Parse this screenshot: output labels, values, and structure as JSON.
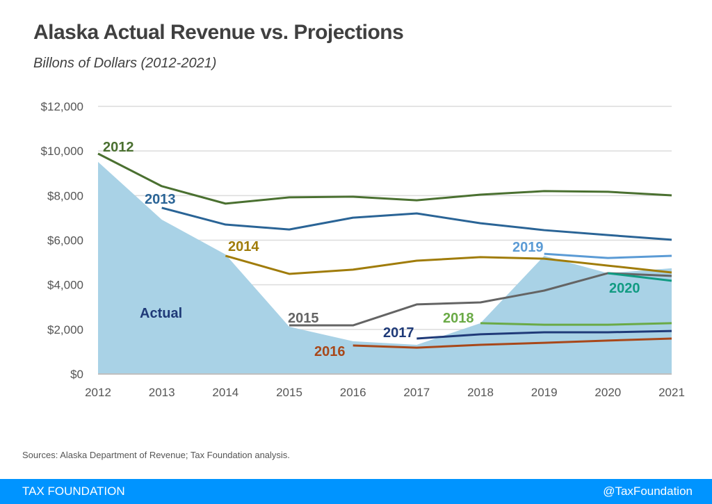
{
  "header": {
    "title": "Alaska Actual Revenue vs. Projections",
    "subtitle": "Billons of Dollars (2012-2021)"
  },
  "footer": {
    "source": "Sources: Alaska Department of Revenue; Tax Foundation analysis.",
    "brand": "TAX FOUNDATION",
    "handle": "@TaxFoundation"
  },
  "chart_data": {
    "type": "line",
    "title": "Alaska Actual Revenue vs. Projections",
    "subtitle": "Billons of Dollars (2012-2021)",
    "xlabel": "",
    "ylabel": "",
    "x": [
      2012,
      2013,
      2014,
      2015,
      2016,
      2017,
      2018,
      2019,
      2020,
      2021
    ],
    "x_tick_labels": [
      "2012",
      "2013",
      "2014",
      "2015",
      "2016",
      "2017",
      "2018",
      "2019",
      "2020",
      "2021"
    ],
    "y_ticks": [
      0,
      2000,
      4000,
      6000,
      8000,
      10000,
      12000
    ],
    "y_tick_labels": [
      "$0",
      "$2,000",
      "$4,000",
      "$6,000",
      "$8,000",
      "$10,000",
      "$12,000"
    ],
    "ylim": [
      0,
      12000
    ],
    "grid": true,
    "actual": {
      "name": "Actual",
      "type": "area",
      "color": "#a9d2e6",
      "label_color": "#1f3a78",
      "values": [
        9510,
        6920,
        5360,
        2120,
        1470,
        1310,
        2280,
        5300,
        4520,
        4740
      ]
    },
    "series": [
      {
        "name": "2012",
        "color": "#4a7030",
        "start": 2012,
        "values": [
          9880,
          8420,
          7640,
          7920,
          7950,
          7790,
          8040,
          8200,
          8170,
          8010
        ]
      },
      {
        "name": "2013",
        "color": "#2a6496",
        "start": 2013,
        "values": [
          7450,
          6700,
          6480,
          7010,
          7200,
          6760,
          6450,
          6230,
          6020
        ]
      },
      {
        "name": "2014",
        "color": "#a07c0a",
        "start": 2014,
        "values": [
          5300,
          4490,
          4680,
          5080,
          5240,
          5170,
          4860,
          4550
        ]
      },
      {
        "name": "2015",
        "color": "#646464",
        "start": 2015,
        "values": [
          2180,
          2180,
          3120,
          3210,
          3740,
          4520,
          4400
        ]
      },
      {
        "name": "2016",
        "color": "#a8481a",
        "start": 2016,
        "values": [
          1280,
          1180,
          1310,
          1400,
          1500,
          1590
        ]
      },
      {
        "name": "2017",
        "color": "#1f3a78",
        "start": 2017,
        "values": [
          1590,
          1780,
          1870,
          1870,
          1930
        ]
      },
      {
        "name": "2018",
        "color": "#6aaa46",
        "start": 2018,
        "values": [
          2280,
          2210,
          2210,
          2280
        ]
      },
      {
        "name": "2019",
        "color": "#5b9bd5",
        "start": 2019,
        "values": [
          5390,
          5200,
          5300
        ]
      },
      {
        "name": "2020",
        "color": "#119b82",
        "start": 2020,
        "values": [
          4520,
          4180
        ]
      }
    ],
    "legend": "inline-labels"
  }
}
